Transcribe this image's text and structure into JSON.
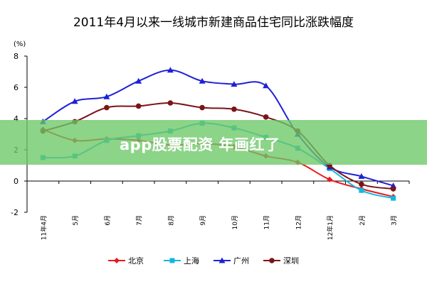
{
  "chart_data": {
    "type": "line",
    "title": "2011年4月以来一线城市新建商品住宅同比涨跌幅度",
    "ylabel": "(%)",
    "xlabel": "",
    "ylim": [
      -2,
      8
    ],
    "yticks": [
      -2,
      0,
      2,
      4,
      6,
      8
    ],
    "categories": [
      "11年4月",
      "5月",
      "6月",
      "7月",
      "8月",
      "9月",
      "10月",
      "11月",
      "12月",
      "12年1月",
      "2月",
      "3月"
    ],
    "grid": false,
    "legend_position": "bottom",
    "series": [
      {
        "name": "北京",
        "color": "#e8191c",
        "marker": "diamond",
        "values": [
          3.3,
          2.6,
          2.7,
          2.6,
          2.3,
          2.4,
          2.2,
          1.6,
          1.2,
          0.1,
          -0.5,
          -1.0
        ]
      },
      {
        "name": "上海",
        "color": "#16b7dc",
        "marker": "square",
        "values": [
          1.5,
          1.6,
          2.6,
          2.9,
          3.2,
          3.7,
          3.4,
          2.8,
          2.1,
          0.8,
          -0.6,
          -1.1
        ]
      },
      {
        "name": "广州",
        "color": "#1f21d6",
        "marker": "triangle",
        "values": [
          3.8,
          5.1,
          5.4,
          6.4,
          7.1,
          6.4,
          6.2,
          6.1,
          3.0,
          0.9,
          0.3,
          -0.3
        ]
      },
      {
        "name": "深圳",
        "color": "#7b1418",
        "marker": "circle",
        "values": [
          3.2,
          3.8,
          4.7,
          4.8,
          5.0,
          4.7,
          4.6,
          4.1,
          3.2,
          1.0,
          -0.2,
          -0.5
        ]
      }
    ]
  },
  "overlay": {
    "banner_text": "app股票配资 年画红了"
  }
}
